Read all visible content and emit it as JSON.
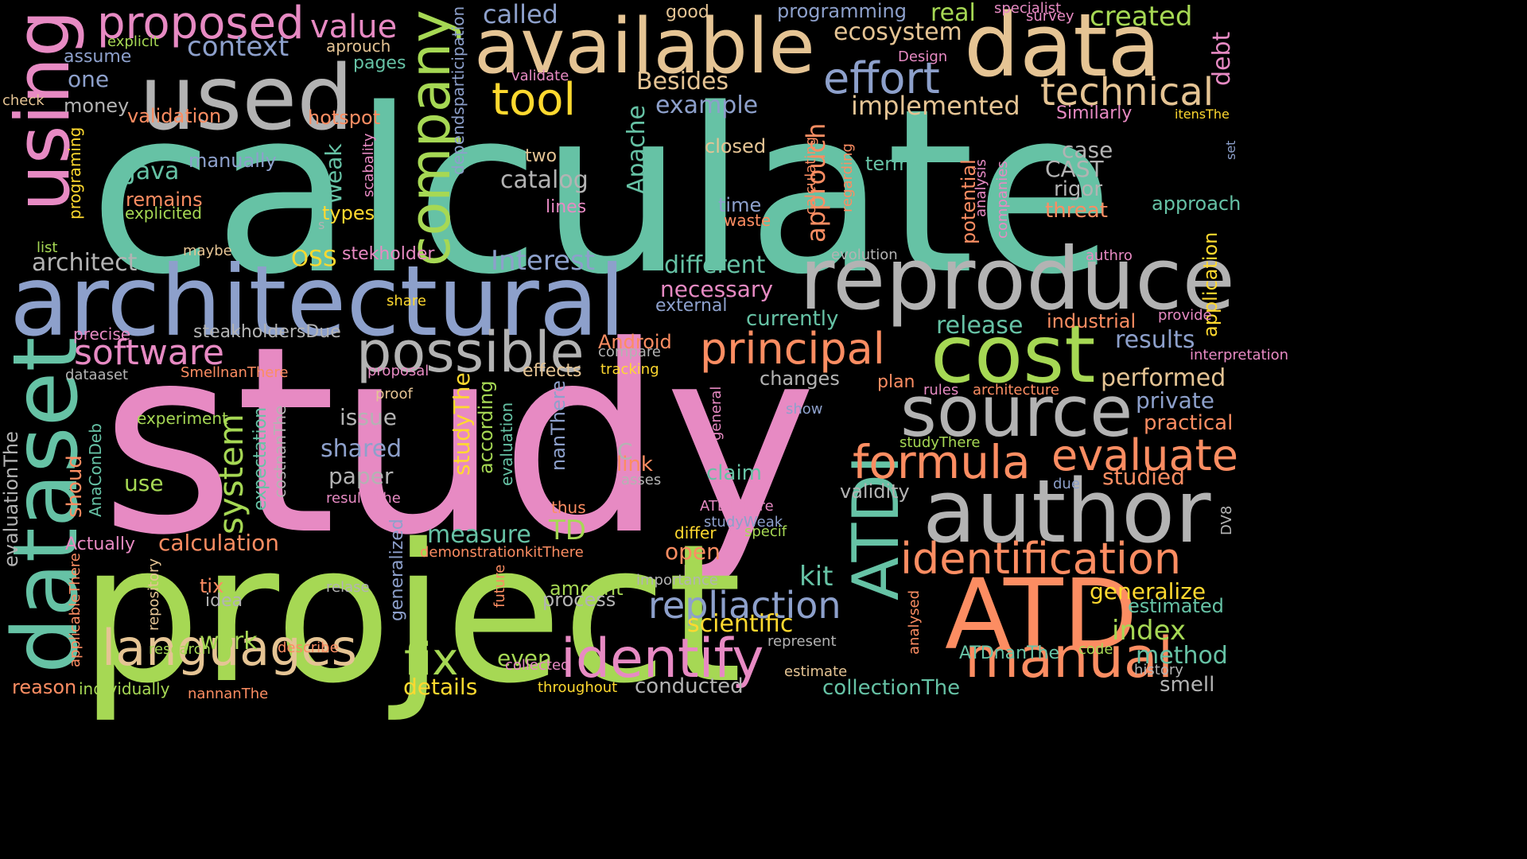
{
  "background": "#000000",
  "palette": {
    "teal": "#66c2a5",
    "salmon": "#fc8d62",
    "periwinkle": "#8da0cb",
    "pink": "#e78ac3",
    "lime": "#a6d854",
    "yellow": "#ffd92f",
    "tan": "#e5c494",
    "gray": "#b3b3b3"
  },
  "words": [
    {
      "text": "calculate",
      "color": "#66c2a5"
    },
    {
      "text": "study",
      "color": "#e78ac3"
    },
    {
      "text": "project",
      "color": "#a6d854"
    },
    {
      "text": "architectural",
      "color": "#8da0cb"
    },
    {
      "text": "reproduce",
      "color": "#b3b3b3"
    },
    {
      "text": "available",
      "color": "#e5c494"
    },
    {
      "text": "data",
      "color": "#e5c494"
    },
    {
      "text": "used",
      "color": "#b3b3b3"
    },
    {
      "text": "author",
      "color": "#b3b3b3"
    },
    {
      "text": "source",
      "color": "#b3b3b3"
    },
    {
      "text": "cost",
      "color": "#a6d854"
    },
    {
      "text": "ATD",
      "color": "#fc8d62"
    },
    {
      "text": "dataset",
      "color": "#66c2a5"
    },
    {
      "text": "using",
      "color": "#e78ac3"
    },
    {
      "text": "identify",
      "color": "#e78ac3"
    },
    {
      "text": "possible",
      "color": "#b3b3b3"
    },
    {
      "text": "ATDI",
      "color": "#66c2a5"
    },
    {
      "text": "company",
      "color": "#a6d854"
    },
    {
      "text": "languages",
      "color": "#e5c494"
    },
    {
      "text": "manual",
      "color": "#fc8d62"
    },
    {
      "text": "principal",
      "color": "#fc8d62"
    },
    {
      "text": "formula",
      "color": "#fc8d62"
    },
    {
      "text": "identification",
      "color": "#fc8d62"
    },
    {
      "text": "proposed",
      "color": "#e78ac3"
    },
    {
      "text": "effort",
      "color": "#8da0cb"
    },
    {
      "text": "technical",
      "color": "#e5c494"
    },
    {
      "text": "software",
      "color": "#e78ac3"
    },
    {
      "text": "tool",
      "color": "#ffd92f"
    },
    {
      "text": "evaluate",
      "color": "#fc8d62"
    },
    {
      "text": "repliaction",
      "color": "#8da0cb"
    },
    {
      "text": "fix",
      "color": "#a6d854"
    },
    {
      "text": "system",
      "color": "#a6d854"
    },
    {
      "text": "Interest",
      "color": "#8da0cb"
    },
    {
      "text": "value",
      "color": "#e78ac3"
    },
    {
      "text": "context",
      "color": "#8da0cb"
    },
    {
      "text": "ecosystem",
      "color": "#e5c494"
    },
    {
      "text": "created",
      "color": "#a6d854"
    },
    {
      "text": "called",
      "color": "#8da0cb"
    },
    {
      "text": "real",
      "color": "#a6d854"
    },
    {
      "text": "implemented",
      "color": "#e5c494"
    },
    {
      "text": "example",
      "color": "#8da0cb"
    },
    {
      "text": "Besides",
      "color": "#e5c494"
    },
    {
      "text": "debt",
      "color": "#e78ac3"
    },
    {
      "text": "approuch",
      "color": "#fc8d62"
    },
    {
      "text": "Apache",
      "color": "#66c2a5"
    },
    {
      "text": "catalog",
      "color": "#b3b3b3"
    },
    {
      "text": "Java",
      "color": "#66c2a5"
    },
    {
      "text": "Weak",
      "color": "#66c2a5"
    },
    {
      "text": "architect",
      "color": "#b3b3b3"
    },
    {
      "text": "OSS",
      "color": "#ffd92f"
    },
    {
      "text": "different",
      "color": "#66c2a5"
    },
    {
      "text": "necessary",
      "color": "#e78ac3"
    },
    {
      "text": "release",
      "color": "#66c2a5"
    },
    {
      "text": "results",
      "color": "#8da0cb"
    },
    {
      "text": "performed",
      "color": "#e5c494"
    },
    {
      "text": "private",
      "color": "#8da0cb"
    },
    {
      "text": "practical",
      "color": "#fc8d62"
    },
    {
      "text": "studied",
      "color": "#fc8d62"
    },
    {
      "text": "generalize",
      "color": "#ffd92f"
    },
    {
      "text": "index",
      "color": "#a6d854"
    },
    {
      "text": "method",
      "color": "#66c2a5"
    },
    {
      "text": "smell",
      "color": "#b3b3b3"
    },
    {
      "text": "estimated",
      "color": "#66c2a5"
    },
    {
      "text": "scientific",
      "color": "#ffd92f"
    },
    {
      "text": "measure",
      "color": "#66c2a5"
    },
    {
      "text": "TD",
      "color": "#a6d854"
    },
    {
      "text": "kit",
      "color": "#66c2a5"
    },
    {
      "text": "open",
      "color": "#fc8d62"
    },
    {
      "text": "calculation",
      "color": "#fc8d62"
    },
    {
      "text": "issue",
      "color": "#b3b3b3"
    },
    {
      "text": "shared",
      "color": "#8da0cb"
    },
    {
      "text": "paper",
      "color": "#b3b3b3"
    },
    {
      "text": "use",
      "color": "#a6d854"
    },
    {
      "text": "work",
      "color": "#a6d854"
    },
    {
      "text": "details",
      "color": "#ffd92f"
    },
    {
      "text": "even",
      "color": "#a6d854"
    },
    {
      "text": "process",
      "color": "#b3b3b3"
    },
    {
      "text": "amount",
      "color": "#a6d854"
    },
    {
      "text": "collectionThe",
      "color": "#66c2a5"
    },
    {
      "text": "conducted",
      "color": "#b3b3b3"
    },
    {
      "text": "ATDnanThe",
      "color": "#66c2a5"
    },
    {
      "text": "case",
      "color": "#b3b3b3"
    },
    {
      "text": "CAST",
      "color": "#b3b3b3"
    },
    {
      "text": "rigor",
      "color": "#b3b3b3"
    },
    {
      "text": "threat",
      "color": "#fc8d62"
    },
    {
      "text": "terms",
      "color": "#66c2a5"
    },
    {
      "text": "approach",
      "color": "#66c2a5"
    },
    {
      "text": "closed",
      "color": "#e5c494"
    },
    {
      "text": "two",
      "color": "#e5c494"
    },
    {
      "text": "time",
      "color": "#8da0cb"
    },
    {
      "text": "waste",
      "color": "#fc8d62"
    },
    {
      "text": "lines",
      "color": "#e78ac3"
    },
    {
      "text": "types",
      "color": "#ffd92f"
    },
    {
      "text": "stekholder",
      "color": "#e78ac3"
    },
    {
      "text": "manually",
      "color": "#8da0cb"
    },
    {
      "text": "remains",
      "color": "#fc8d62"
    },
    {
      "text": "explicited",
      "color": "#a6d854"
    },
    {
      "text": "programing",
      "color": "#ffd92f"
    },
    {
      "text": "validation",
      "color": "#fc8d62"
    },
    {
      "text": "money",
      "color": "#b3b3b3"
    },
    {
      "text": "one",
      "color": "#8da0cb"
    },
    {
      "text": "assume",
      "color": "#8da0cb"
    },
    {
      "text": "explicit",
      "color": "#a6d854"
    },
    {
      "text": "aprouch",
      "color": "#e5c494"
    },
    {
      "text": "pages",
      "color": "#66c2a5"
    },
    {
      "text": "hotspot",
      "color": "#fc8d62"
    },
    {
      "text": "scabality",
      "color": "#e78ac3"
    },
    {
      "text": "dependsparticipation",
      "color": "#8da0cb"
    },
    {
      "text": "good",
      "color": "#e5c494"
    },
    {
      "text": "programming",
      "color": "#8da0cb"
    },
    {
      "text": "specialist",
      "color": "#e78ac3"
    },
    {
      "text": "survey",
      "color": "#e78ac3"
    },
    {
      "text": "Design",
      "color": "#e78ac3"
    },
    {
      "text": "validate",
      "color": "#e78ac3"
    },
    {
      "text": "Similarly",
      "color": "#e78ac3"
    },
    {
      "text": "itensThe",
      "color": "#ffd92f"
    },
    {
      "text": "set",
      "color": "#8da0cb"
    },
    {
      "text": "check",
      "color": "#e5c494"
    },
    {
      "text": "calculating",
      "color": "#fc8d62"
    },
    {
      "text": "regarding",
      "color": "#fc8d62"
    },
    {
      "text": "potential",
      "color": "#fc8d62"
    },
    {
      "text": "analysis",
      "color": "#e78ac3"
    },
    {
      "text": "companies",
      "color": "#e78ac3"
    },
    {
      "text": "evolution",
      "color": "#b3b3b3"
    },
    {
      "text": "authro",
      "color": "#e78ac3"
    },
    {
      "text": "application",
      "color": "#ffd92f"
    },
    {
      "text": "external",
      "color": "#8da0cb"
    },
    {
      "text": "currently",
      "color": "#66c2a5"
    },
    {
      "text": "industrial",
      "color": "#fc8d62"
    },
    {
      "text": "provide",
      "color": "#e78ac3"
    },
    {
      "text": "interpretation",
      "color": "#e78ac3"
    },
    {
      "text": "list",
      "color": "#a6d854"
    },
    {
      "text": "maybe",
      "color": "#e5c494"
    },
    {
      "text": "s",
      "color": "#b3b3b3"
    },
    {
      "text": "share",
      "color": "#ffd92f"
    },
    {
      "text": "precise",
      "color": "#e78ac3"
    },
    {
      "text": "steakholdersDue",
      "color": "#b3b3b3"
    },
    {
      "text": "dataaset",
      "color": "#b3b3b3"
    },
    {
      "text": "SmellnanThere",
      "color": "#fc8d62"
    },
    {
      "text": "proposal",
      "color": "#e78ac3"
    },
    {
      "text": "Android",
      "color": "#fc8d62"
    },
    {
      "text": "compare",
      "color": "#b3b3b3"
    },
    {
      "text": "effects",
      "color": "#e5c494"
    },
    {
      "text": "tracking",
      "color": "#ffd92f"
    },
    {
      "text": "changes",
      "color": "#b3b3b3"
    },
    {
      "text": "plan",
      "color": "#fc8d62"
    },
    {
      "text": "rules",
      "color": "#e78ac3"
    },
    {
      "text": "architecture",
      "color": "#fc8d62"
    },
    {
      "text": "proof",
      "color": "#e5c494"
    },
    {
      "text": "according",
      "color": "#a6d854"
    },
    {
      "text": "studyThe",
      "color": "#ffd92f"
    },
    {
      "text": "evaluation",
      "color": "#66c2a5"
    },
    {
      "text": "nanThere",
      "color": "#8da0cb"
    },
    {
      "text": "general",
      "color": "#e78ac3"
    },
    {
      "text": "show",
      "color": "#8da0cb"
    },
    {
      "text": "studyThere",
      "color": "#a6d854"
    },
    {
      "text": "experiment",
      "color": "#a6d854"
    },
    {
      "text": "evaluationThe",
      "color": "#b3b3b3"
    },
    {
      "text": "shoud",
      "color": "#fc8d62"
    },
    {
      "text": "AnaConDeb",
      "color": "#66c2a5"
    },
    {
      "text": "expectation",
      "color": "#66c2a5"
    },
    {
      "text": "costnanThe",
      "color": "#b3b3b3"
    },
    {
      "text": "C",
      "color": "#b3b3b3"
    },
    {
      "text": "link",
      "color": "#fc8d62"
    },
    {
      "text": "asses",
      "color": "#b3b3b3"
    },
    {
      "text": "claim",
      "color": "#66c2a5"
    },
    {
      "text": "validity",
      "color": "#b3b3b3"
    },
    {
      "text": "due",
      "color": "#8da0cb"
    },
    {
      "text": "resultsThe",
      "color": "#e78ac3"
    },
    {
      "text": "thus",
      "color": "#fc8d62"
    },
    {
      "text": "ATDIThere",
      "color": "#e78ac3"
    },
    {
      "text": "studyWeak",
      "color": "#8da0cb"
    },
    {
      "text": "differ",
      "color": "#ffd92f"
    },
    {
      "text": "specif",
      "color": "#a6d854"
    },
    {
      "text": "DV8",
      "color": "#b3b3b3"
    },
    {
      "text": "Actually",
      "color": "#e78ac3"
    },
    {
      "text": "demonstrationkitThere",
      "color": "#fc8d62"
    },
    {
      "text": "generalized",
      "color": "#8da0cb"
    },
    {
      "text": "repository",
      "color": "#e5c494"
    },
    {
      "text": "tix",
      "color": "#fc8d62"
    },
    {
      "text": "idea",
      "color": "#b3b3b3"
    },
    {
      "text": "relase",
      "color": "#b3b3b3"
    },
    {
      "text": "importance",
      "color": "#b3b3b3"
    },
    {
      "text": "future",
      "color": "#fc8d62"
    },
    {
      "text": "applicableThere",
      "color": "#fc8d62"
    },
    {
      "text": "research",
      "color": "#a6d854"
    },
    {
      "text": "describe",
      "color": "#fc8d62"
    },
    {
      "text": "reason",
      "color": "#fc8d62"
    },
    {
      "text": "individually",
      "color": "#a6d854"
    },
    {
      "text": "nannanThe",
      "color": "#fc8d62"
    },
    {
      "text": "collected",
      "color": "#e78ac3"
    },
    {
      "text": "throughout",
      "color": "#ffd92f"
    },
    {
      "text": "represent",
      "color": "#b3b3b3"
    },
    {
      "text": "estimate",
      "color": "#e5c494"
    },
    {
      "text": "analysed",
      "color": "#fc8d62"
    },
    {
      "text": "code",
      "color": "#a6d854"
    },
    {
      "text": "history",
      "color": "#b3b3b3"
    }
  ]
}
